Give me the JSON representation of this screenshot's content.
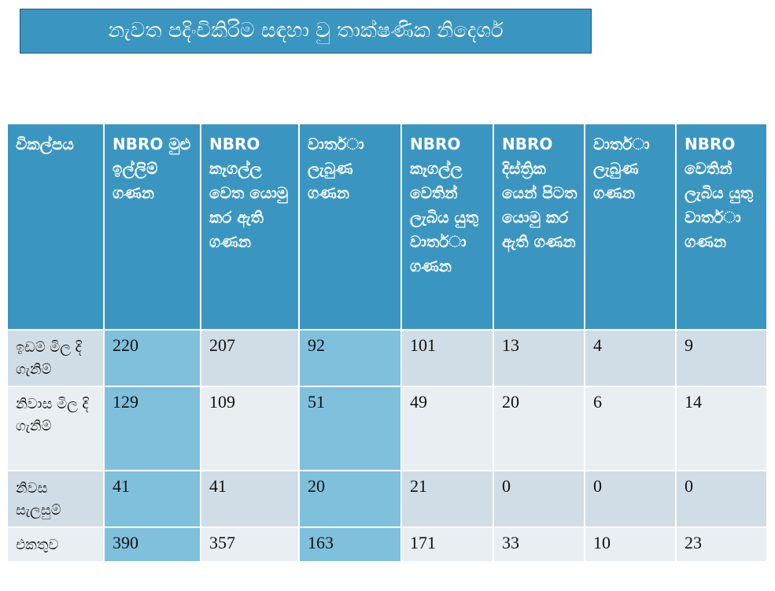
{
  "title": "නැවත පදිංචිකිරිම සඳහා වු තාක්ෂණික නිදෙර්ශ",
  "table": {
    "headers": [
      "විකල්පය",
      "NBRO මුළු ඉල්ලිම් ගණන",
      "NBRO කෑගල්ල වෙත යොමු කර ඇති ගණන",
      "වාතර්ා ලැබුණ ගණන",
      "NBRO කෑගල්ල වෙතින් ලැබිය යුතු වාතර්ා ගණන",
      "NBRO දිස්ත්‍රික යෙන් පිටත යොමු කර ඇති ගණන",
      "වාතර්ා ලැබුණ ගණන",
      "NBRO වෙතින් ලැබිය යුතු වාතර්ා ගණන"
    ],
    "rows": [
      {
        "label": "ඉඩම් මිල දි ගැනිම්",
        "values": [
          "220",
          "207",
          "92",
          "101",
          "13",
          "4",
          "9"
        ]
      },
      {
        "label": "නිවාස මිල දි ගැනිම්",
        "values": [
          "129",
          "109",
          "51",
          "49",
          "20",
          "6",
          "14"
        ]
      },
      {
        "label": "නිවස සැලසුම්",
        "values": [
          "41",
          "41",
          "20",
          "21",
          "0",
          "0",
          "0"
        ]
      },
      {
        "label": "එකතුව",
        "values": [
          "390",
          "357",
          "163",
          "171",
          "33",
          "10",
          "23"
        ]
      }
    ]
  },
  "colors": {
    "header_bg": "#3a96c0",
    "highlight": "#7fc0dc",
    "row_dark": "#d0dde7",
    "row_light": "#e8eef2"
  }
}
